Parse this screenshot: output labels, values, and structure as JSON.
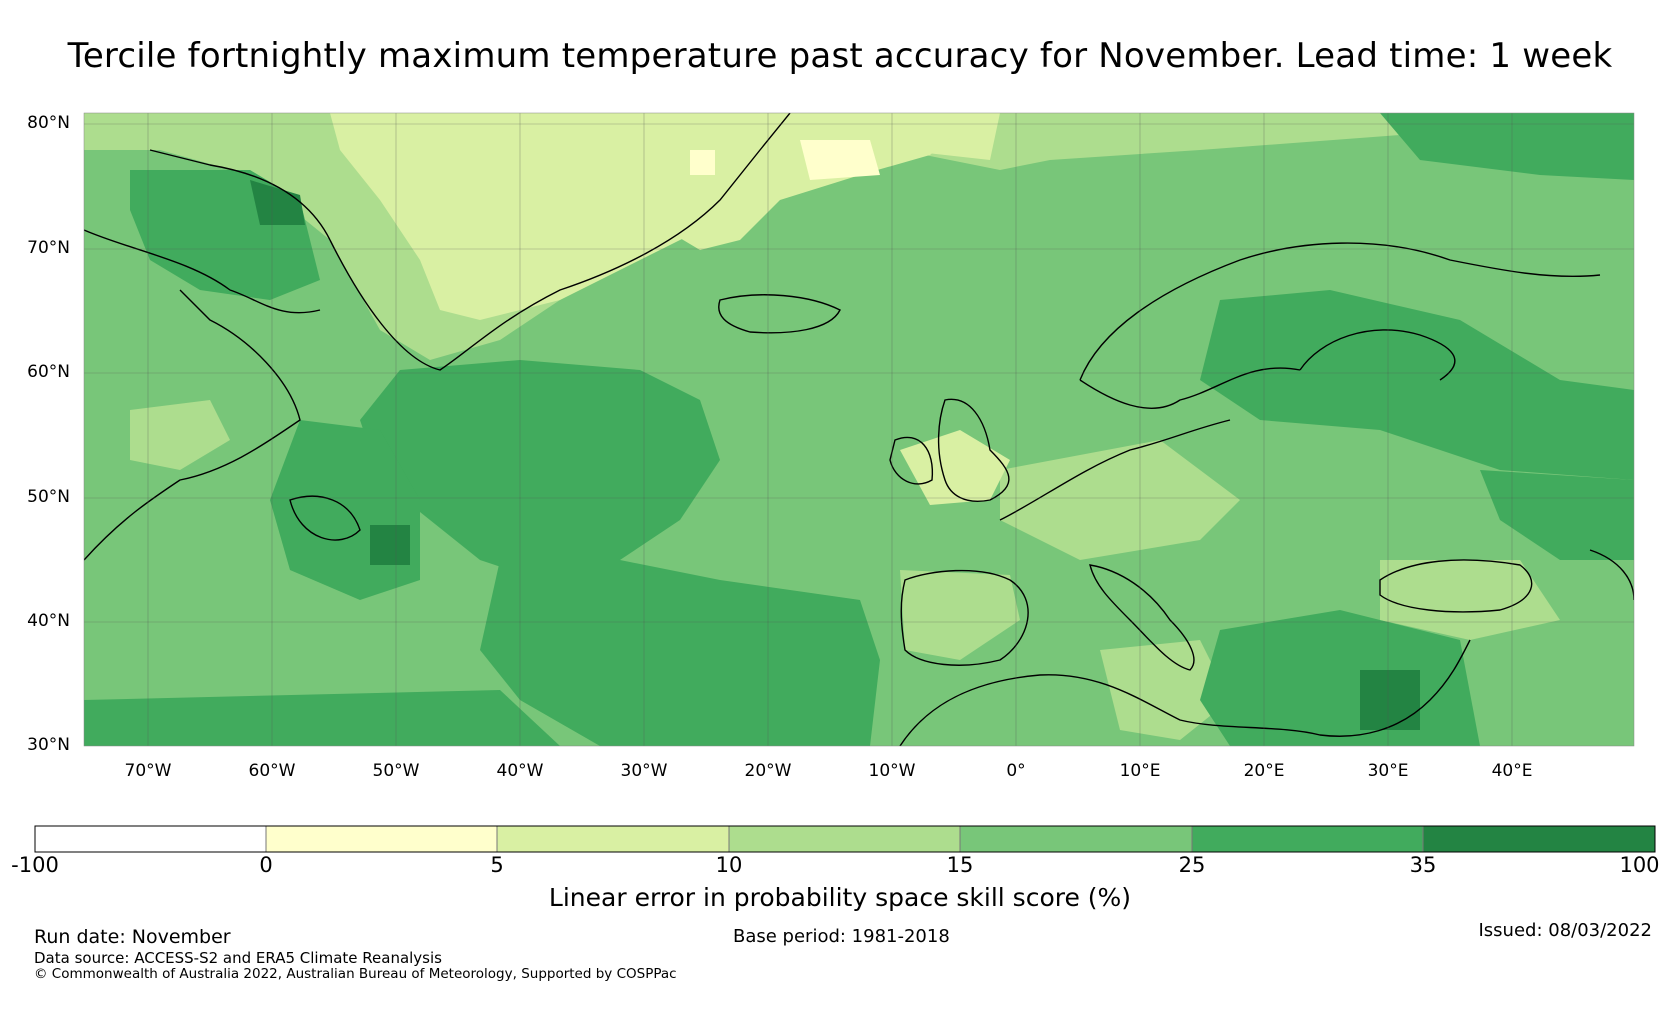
{
  "title": "Tercile fortnightly maximum temperature past accuracy for November. Lead time: 1 week",
  "map": {
    "lat_labels": [
      "80°N",
      "70°N",
      "60°N",
      "50°N",
      "40°N",
      "30°N"
    ],
    "lon_labels": [
      "70°W",
      "60°W",
      "50°W",
      "40°W",
      "30°W",
      "20°W",
      "10°W",
      "0°",
      "10°E",
      "20°E",
      "30°E",
      "40°E"
    ],
    "extent": {
      "lon_min": -75,
      "lon_max": 50,
      "lat_min": 30,
      "lat_max": 81
    },
    "features": [
      "Greenland",
      "Iceland",
      "British Isles",
      "Scandinavia",
      "Iberia",
      "Italy",
      "North Africa",
      "Black Sea",
      "Mediterranean"
    ]
  },
  "colorbar": {
    "bounds": [
      "-100",
      "0",
      "5",
      "10",
      "15",
      "25",
      "35",
      "100"
    ],
    "colors": [
      "#ffffff",
      "#ffffcc",
      "#d9f0a3",
      "#addd8e",
      "#78c679",
      "#41ab5d",
      "#238443"
    ],
    "label": "Linear error in probability space skill score (%)"
  },
  "footer": {
    "run_date": "Run date: November",
    "base_period": "Base period: 1981-2018",
    "issued": "Issued: 08/03/2022",
    "data_source": "Data source: ACCESS-S2 and ERA5 Climate Reanalysis",
    "copyright": "© Commonwealth of Australia 2022, Australian Bureau of Meteorology, Supported by COSPPac"
  }
}
